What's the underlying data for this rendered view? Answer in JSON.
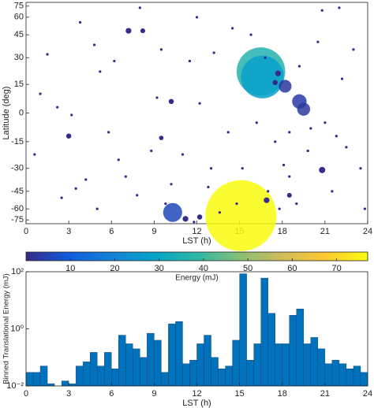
{
  "chart_data": [
    {
      "type": "scatter",
      "xlabel": "LST (h)",
      "ylabel": "Latitude (deg)",
      "xlim": [
        0,
        24
      ],
      "xticks": [
        0,
        3,
        6,
        9,
        12,
        15,
        18,
        21,
        24
      ],
      "ylim": [
        -90,
        90
      ],
      "yscale": "sin",
      "yticks": [
        -75,
        -60,
        -45,
        -30,
        -15,
        0,
        15,
        30,
        45,
        60,
        75
      ],
      "x": [
        15.1,
        16.5,
        16.6,
        10.3,
        19.2,
        19.5,
        18.2,
        3,
        7.2,
        8.2,
        10.2,
        9.5,
        20.8,
        11.2,
        12.2,
        17.5,
        17.7,
        16.9,
        18.5,
        1,
        1.5,
        2.2,
        3.2,
        3.5,
        4.2,
        4.8,
        5.2,
        5.8,
        6.2,
        6.5,
        7,
        7.8,
        8.8,
        9.2,
        9.5,
        10.2,
        11,
        11.5,
        12,
        12.2,
        12.8,
        13.2,
        13.6,
        14.2,
        14.5,
        15.2,
        15.8,
        16.2,
        17,
        17.5,
        18.1,
        18.5,
        19,
        19.8,
        20.5,
        21,
        21.5,
        22.2,
        22.5,
        23,
        23.5,
        22,
        20.8,
        17.8,
        2.5,
        0.6,
        5,
        8,
        14.8,
        23.8,
        11.8,
        3.8,
        16.8,
        18.5,
        19.2,
        20,
        21.8,
        13,
        9.8
      ],
      "y": [
        -68,
        22,
        19,
        -64,
        6,
        2,
        14,
        -12,
        48,
        48,
        6,
        -13,
        -31,
        -73,
        -70,
        16,
        21,
        -52,
        -48,
        10,
        32,
        3,
        -1,
        -43,
        -37,
        38,
        22,
        -10,
        28,
        -25,
        -35,
        -48,
        -20,
        8,
        35,
        -40,
        -22,
        28,
        60,
        5,
        -42,
        33,
        -64,
        -10,
        50,
        -30,
        45,
        -5,
        -45,
        -15,
        -28,
        -10,
        -55,
        -20,
        40,
        -5,
        -45,
        18,
        -18,
        35,
        -30,
        72,
        68,
        -60,
        -50,
        -22,
        -60,
        72,
        -55,
        -60,
        -80,
        55,
        30,
        -35,
        25,
        -8,
        -12,
        -30,
        -55
      ],
      "sizes": [
        77,
        36,
        28,
        5.5,
        3.2,
        2.6,
        2.5,
        0.4,
        0.5,
        0.35,
        0.4,
        0.3,
        0.6,
        0.5,
        0.4,
        0.4,
        0.5,
        0.5,
        0.35,
        0.1,
        0.1,
        0.1,
        0.1,
        0.1,
        0.1,
        0.1,
        0.1,
        0.1,
        0.1,
        0.1,
        0.1,
        0.1,
        0.1,
        0.1,
        0.1,
        0.1,
        0.1,
        0.1,
        0.1,
        0.1,
        0.1,
        0.1,
        0.1,
        0.1,
        0.1,
        0.1,
        0.1,
        0.1,
        0.1,
        0.1,
        0.1,
        0.1,
        0.1,
        0.1,
        0.1,
        0.1,
        0.1,
        0.1,
        0.1,
        0.1,
        0.1,
        0.1,
        0.1,
        0.1,
        0.1,
        0.1,
        0.1,
        0.1,
        0.1,
        0.1,
        0.1,
        0.1,
        0.1,
        0.1,
        0.1,
        0.1,
        0.1,
        0.1,
        0.1
      ],
      "colorbar": {
        "label": "Energy (mJ)",
        "lim": [
          0,
          77
        ],
        "ticks": [
          10,
          20,
          30,
          40,
          50,
          60,
          70
        ],
        "colormap": [
          "#352a87",
          "#0f5cdd",
          "#1481d6",
          "#06a4ca",
          "#2eb7a4",
          "#87bf77",
          "#d1bb59",
          "#fec832",
          "#f9fb0e"
        ]
      }
    },
    {
      "type": "histogram",
      "xlabel": "LST (h)",
      "ylabel": "Binned Translational Energy (mJ)",
      "color": "#0072bd",
      "xlim": [
        0,
        24
      ],
      "xticks": [
        0,
        3,
        6,
        9,
        12,
        15,
        18,
        21,
        24
      ],
      "ylim": [
        0.01,
        100
      ],
      "yscale": "log",
      "yticks": [
        {
          "value": 0.01,
          "label": "10⁻²"
        },
        {
          "value": 1,
          "label": "10⁰"
        },
        {
          "value": 100,
          "label": "10²"
        }
      ],
      "bins": [
        0,
        0.5,
        1,
        1.5,
        2,
        2.5,
        3,
        3.5,
        4,
        4.5,
        5,
        5.5,
        6,
        6.5,
        7,
        7.5,
        8,
        8.5,
        9,
        9.5,
        10,
        10.5,
        11,
        11.5,
        12,
        12.5,
        13,
        13.5,
        14,
        14.5,
        15,
        15.5,
        16,
        16.5,
        17,
        17.5,
        18,
        18.5,
        19,
        19.5,
        20,
        20.5,
        21,
        21.5,
        22,
        22.5,
        23,
        23.5,
        24
      ],
      "values": [
        0.03,
        0.03,
        0.05,
        0.012,
        0.01,
        0.015,
        0.012,
        0.05,
        0.07,
        0.15,
        0.05,
        0.15,
        0.04,
        0.6,
        0.3,
        0.2,
        0.1,
        0.7,
        0.4,
        0.03,
        1.5,
        1.8,
        0.06,
        0.08,
        0.3,
        0.6,
        0.1,
        0.04,
        0.05,
        0.4,
        85,
        0.08,
        0.3,
        60,
        3.5,
        0.3,
        0.3,
        3.0,
        5.0,
        0.3,
        0.5,
        0.2,
        0.06,
        0.08,
        0.06,
        0.04,
        0.05,
        0.03
      ]
    }
  ]
}
